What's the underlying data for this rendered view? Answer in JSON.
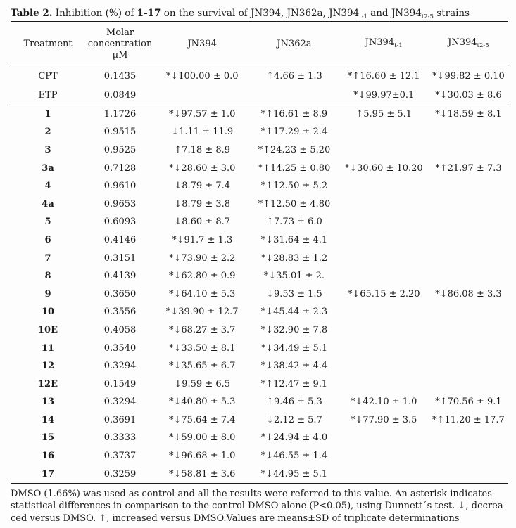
{
  "page": {
    "background_color": "#fdfdfd",
    "text_color": "#1b1b1b"
  },
  "title": {
    "label": "Table 2.",
    "seg1": " Inhibition (%) of ",
    "compound_range": "1-17",
    "seg2": " on the survival of JN394, JN362a, JN394",
    "sub1": "t-1",
    "seg3": " and JN394",
    "sub2": "t2-5",
    "seg4": " strains"
  },
  "table": {
    "headers": {
      "treatment": "Treatment",
      "molar_line1": "Molar",
      "molar_line2": "concentration",
      "molar_line3": "µM",
      "jn394": "JN394",
      "jn362a": "JN362a",
      "jn394t1_base": "JN394",
      "jn394t1_sub": "t-1",
      "jn394t25_base": "JN394",
      "jn394t25_sub": "t2-5"
    },
    "control_rows": [
      {
        "treatment": "CPT",
        "molar_concentration": "0.1435",
        "jn394": "*↓100.00 ± 0.0",
        "jn362a": "↑4.66 ± 1.3",
        "jn394t1": "*↑16.60 ± 12.1",
        "jn394t25": "*↓99.82 ± 0.10"
      },
      {
        "treatment": "ETP",
        "molar_concentration": "0.0849",
        "jn394": "",
        "jn362a": "",
        "jn394t1": "*↓99.97±0.1",
        "jn394t25": "*↓30.03 ± 8.6"
      }
    ],
    "compound_rows": [
      {
        "treatment": "1",
        "molar_concentration": "1.1726",
        "jn394": "*↓97.57 ± 1.0",
        "jn362a": "*↑16.61 ± 8.9",
        "jn394t1": "↑5.95 ± 5.1",
        "jn394t25": "*↓18.59 ± 8.1"
      },
      {
        "treatment": "2",
        "molar_concentration": "0.9515",
        "jn394": "↓1.11 ± 11.9",
        "jn362a": "*↑17.29 ± 2.4",
        "jn394t1": "",
        "jn394t25": ""
      },
      {
        "treatment": "3",
        "molar_concentration": "0.9525",
        "jn394": "↑7.18 ± 8.9",
        "jn362a": "*↑24.23 ± 5.20",
        "jn394t1": "",
        "jn394t25": ""
      },
      {
        "treatment": "3a",
        "molar_concentration": "0.7128",
        "jn394": "*↓28.60 ± 3.0",
        "jn362a": "*↑14.25 ± 0.80",
        "jn394t1": "*↓30.60 ± 10.20",
        "jn394t25": "*↑21.97 ± 7.3"
      },
      {
        "treatment": "4",
        "molar_concentration": "0.9610",
        "jn394": "↓8.79 ± 7.4",
        "jn362a": "*↑12.50 ± 5.2",
        "jn394t1": "",
        "jn394t25": ""
      },
      {
        "treatment": "4a",
        "molar_concentration": "0.9653",
        "jn394": "↓8.79 ± 3.8",
        "jn362a": "*↑12.50 ± 4.80",
        "jn394t1": "",
        "jn394t25": ""
      },
      {
        "treatment": "5",
        "molar_concentration": "0.6093",
        "jn394": "↓8.60 ± 8.7",
        "jn362a": "↑7.73 ± 6.0",
        "jn394t1": "",
        "jn394t25": ""
      },
      {
        "treatment": "6",
        "molar_concentration": "0.4146",
        "jn394": "*↓91.7 ± 1.3",
        "jn362a": "*↓31.64 ± 4.1",
        "jn394t1": "",
        "jn394t25": ""
      },
      {
        "treatment": "7",
        "molar_concentration": "0.3151",
        "jn394": "*↓73.90 ± 2.2",
        "jn362a": "*↓28.83 ± 1.2",
        "jn394t1": "",
        "jn394t25": ""
      },
      {
        "treatment": "8",
        "molar_concentration": "0.4139",
        "jn394": "*↓62.80 ± 0.9",
        "jn362a": "*↓35.01 ± 2.",
        "jn394t1": "",
        "jn394t25": ""
      },
      {
        "treatment": "9",
        "molar_concentration": "0.3650",
        "jn394": "*↓64.10 ± 5.3",
        "jn362a": "↓9.53 ± 1.5",
        "jn394t1": "*↓65.15 ± 2.20",
        "jn394t25": "*↓86.08 ± 3.3"
      },
      {
        "treatment": "10",
        "molar_concentration": "0.3556",
        "jn394": "*↓39.90 ± 12.7",
        "jn362a": "*↓45.44 ± 2.3",
        "jn394t1": "",
        "jn394t25": ""
      },
      {
        "treatment": "10E",
        "molar_concentration": "0.4058",
        "jn394": "*↓68.27 ± 3.7",
        "jn362a": "*↓32.90 ± 7.8",
        "jn394t1": "",
        "jn394t25": ""
      },
      {
        "treatment": "11",
        "molar_concentration": "0.3540",
        "jn394": "*↓33.50 ± 8.1",
        "jn362a": "*↓34.49 ± 5.1",
        "jn394t1": "",
        "jn394t25": ""
      },
      {
        "treatment": "12",
        "molar_concentration": "0.3294",
        "jn394": "*↓35.65 ± 6.7",
        "jn362a": "*↓38.42 ± 4.4",
        "jn394t1": "",
        "jn394t25": ""
      },
      {
        "treatment": "12E",
        "molar_concentration": "0.1549",
        "jn394": "↓9.59 ± 6.5",
        "jn362a": "*↑12.47 ± 9.1",
        "jn394t1": "",
        "jn394t25": ""
      },
      {
        "treatment": "13",
        "molar_concentration": "0.3294",
        "jn394": "*↓40.80 ± 5.3",
        "jn362a": "↑9.46 ± 5.3",
        "jn394t1": "*↓42.10 ± 1.0",
        "jn394t25": "*↑70.56 ± 9.1"
      },
      {
        "treatment": "14",
        "molar_concentration": "0.3691",
        "jn394": "*↓75.64 ± 7.4",
        "jn362a": "↓2.12 ± 5.7",
        "jn394t1": "*↓77.90 ± 3.5",
        "jn394t25": "*↑11.20 ± 17.7"
      },
      {
        "treatment": "15",
        "molar_concentration": "0.3333",
        "jn394": "*↓59.00 ± 8.0",
        "jn362a": "*↓24.94 ± 4.0",
        "jn394t1": "",
        "jn394t25": ""
      },
      {
        "treatment": "16",
        "molar_concentration": "0.3737",
        "jn394": "*↓96.68 ± 1.0",
        "jn362a": "*↓46.55 ± 1.4",
        "jn394t1": "",
        "jn394t25": ""
      },
      {
        "treatment": "17",
        "molar_concentration": "0.3259",
        "jn394": "*↓58.81 ± 3.6",
        "jn362a": "*↓44.95 ± 5.1",
        "jn394t1": "",
        "jn394t25": ""
      }
    ]
  },
  "footnote": {
    "line1": "DMSO (1.66%) was used as control and all the results were referred to this value. An asterisk indicates",
    "line2": "statistical differences in comparison to the control DMSO alone (P<0.05), using Dunnett´s test. ↓, decrea-",
    "line3": "ced versus DMSO. ↑, increased versus DMSO.Values are means±SD of triplicate determinations"
  }
}
